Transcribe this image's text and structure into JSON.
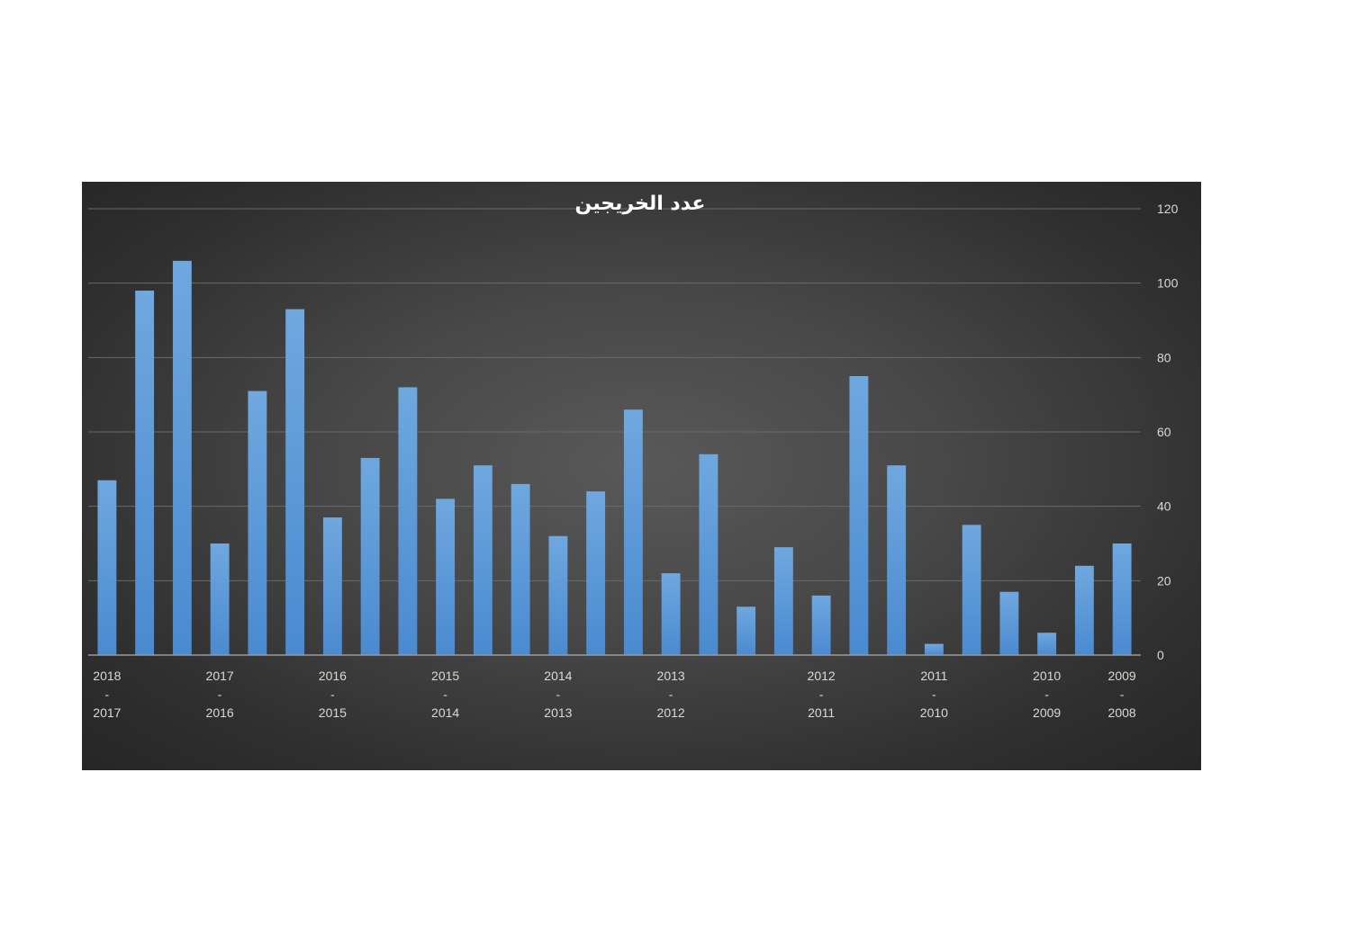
{
  "chart_data": {
    "type": "bar",
    "title": "عدد الخريجين",
    "xlabel": "",
    "ylabel": "",
    "ylim": [
      0,
      120
    ],
    "yticks": [
      0,
      20,
      40,
      60,
      80,
      100,
      120
    ],
    "y_axis_position": "right",
    "grid": true,
    "legend": "none",
    "bar_color": "#5b9bd5",
    "categories": [
      "",
      "",
      "",
      "",
      "",
      "",
      "",
      "",
      "",
      "",
      "",
      "",
      "",
      "",
      "",
      "",
      "",
      "",
      "",
      "",
      "",
      "",
      "",
      "",
      "",
      "",
      "",
      ""
    ],
    "values": [
      47,
      98,
      106,
      30,
      71,
      93,
      37,
      53,
      72,
      42,
      51,
      46,
      32,
      44,
      66,
      22,
      54,
      13,
      29,
      16,
      75,
      51,
      3,
      35,
      17,
      6,
      24,
      30
    ],
    "x_tick_labels": [
      {
        "bar_index": 0,
        "lines": [
          "2018",
          "-",
          "2017"
        ]
      },
      {
        "bar_index": 3,
        "lines": [
          "2017",
          "-",
          "2016"
        ]
      },
      {
        "bar_index": 6,
        "lines": [
          "2016",
          "-",
          "2015"
        ]
      },
      {
        "bar_index": 9,
        "lines": [
          "2015",
          "-",
          "2014"
        ]
      },
      {
        "bar_index": 12,
        "lines": [
          "2014",
          "-",
          "2013"
        ]
      },
      {
        "bar_index": 15,
        "lines": [
          "2013",
          "-",
          "2012"
        ]
      },
      {
        "bar_index": 19,
        "lines": [
          "2012",
          "-",
          "2011"
        ]
      },
      {
        "bar_index": 22,
        "lines": [
          "2011",
          "-",
          "2010"
        ]
      },
      {
        "bar_index": 25,
        "lines": [
          "2010",
          "-",
          "2009"
        ]
      },
      {
        "bar_index": 27,
        "lines": [
          "2009",
          "-",
          "2008"
        ]
      }
    ]
  }
}
